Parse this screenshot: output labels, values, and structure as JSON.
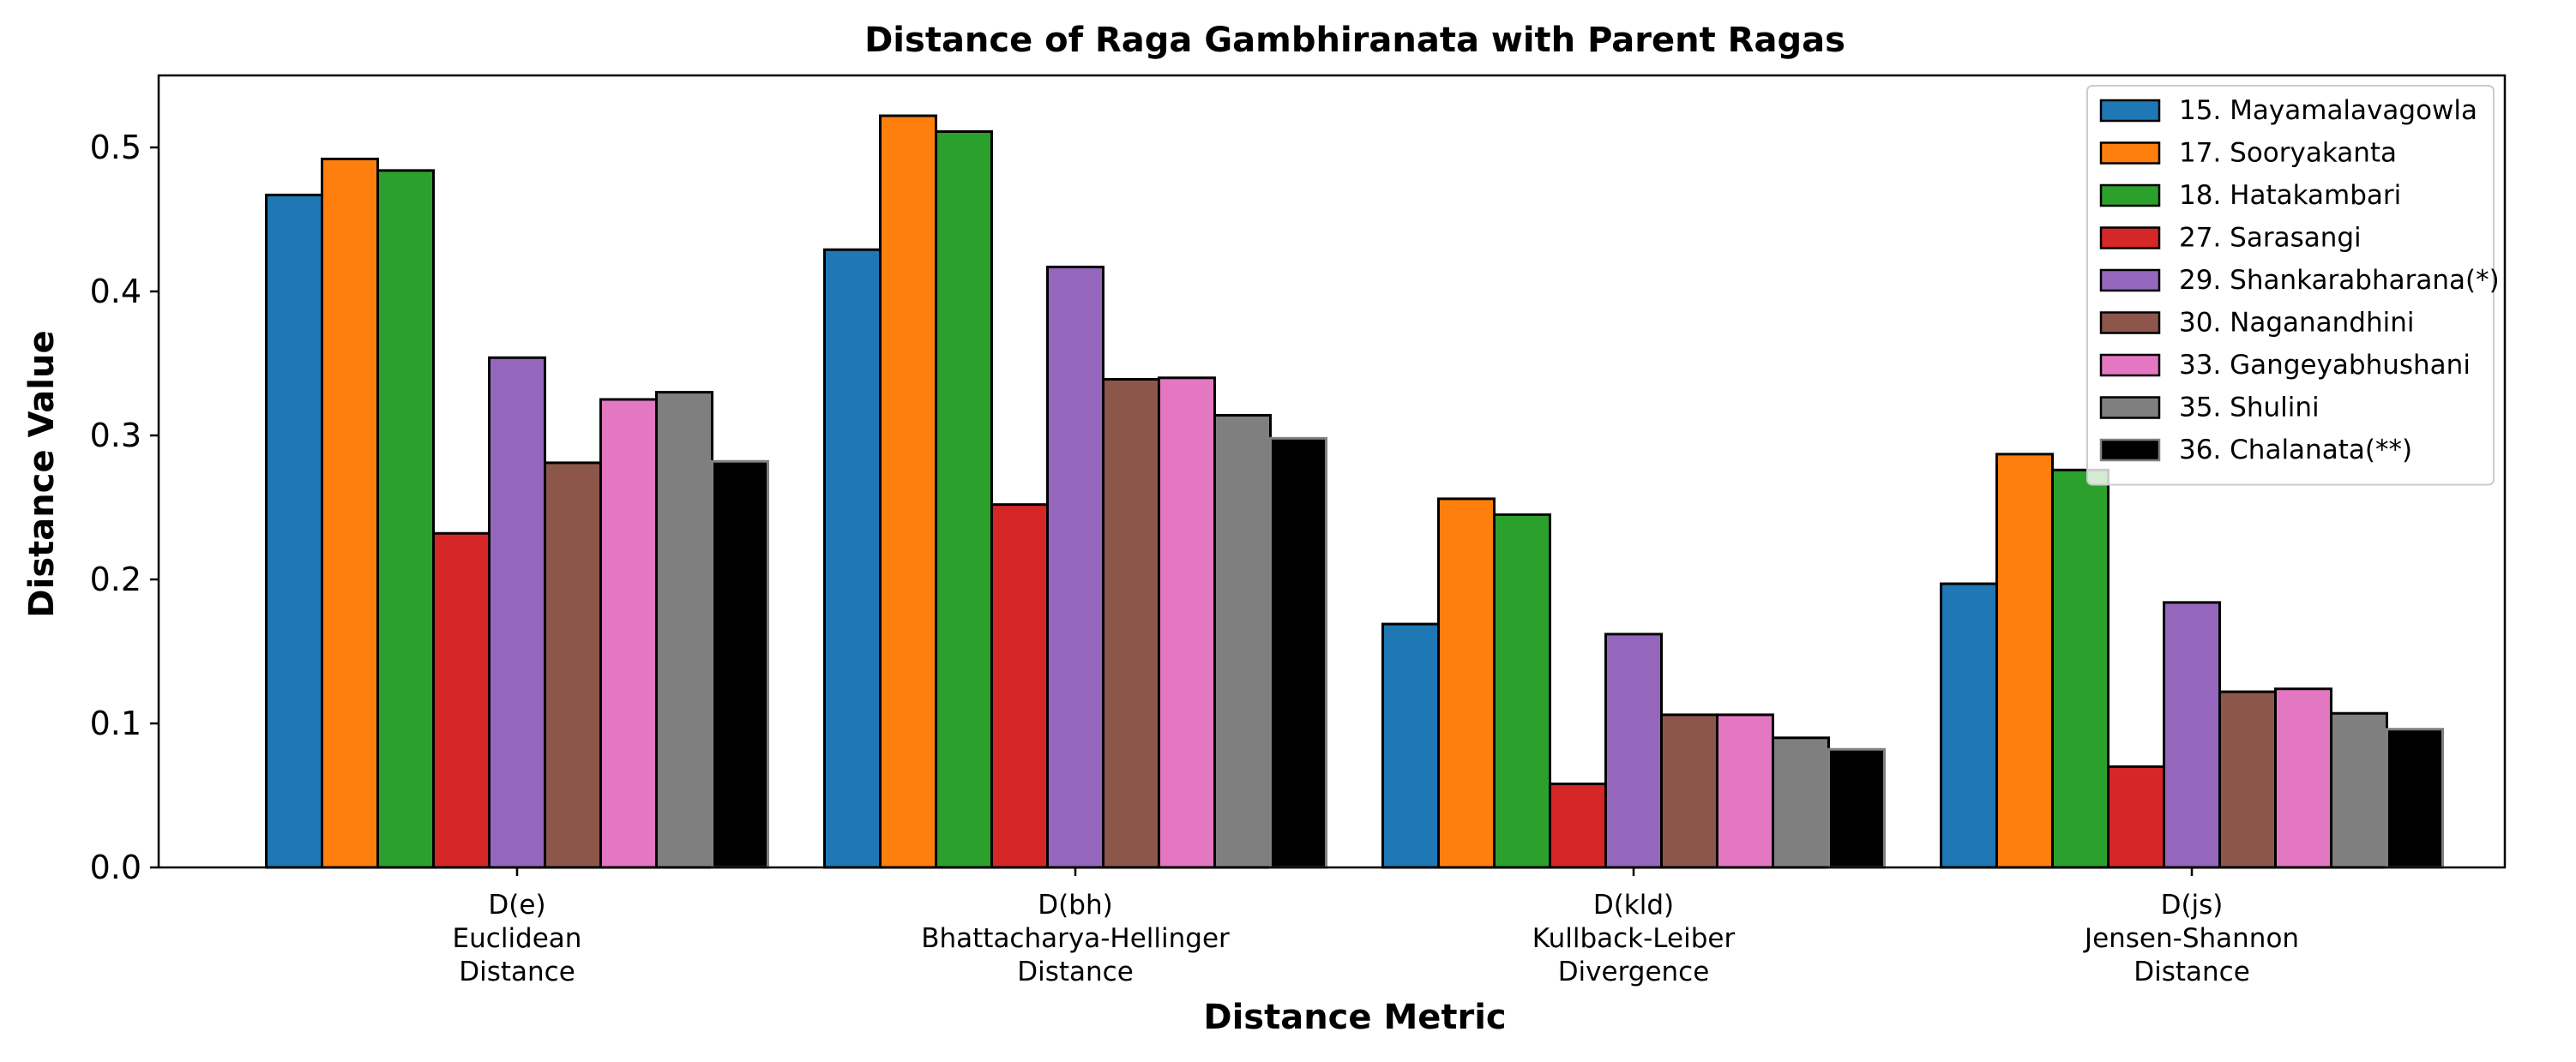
{
  "chart_data": {
    "type": "bar",
    "title": "Distance of Raga Gambhiranata with Parent Ragas",
    "xlabel": "Distance Metric",
    "ylabel": "Distance Value",
    "ylim": [
      0,
      0.55
    ],
    "yticks": [
      "0.0",
      "0.1",
      "0.2",
      "0.3",
      "0.4",
      "0.5"
    ],
    "grid": false,
    "legend_position": "top-right",
    "categories": [
      [
        "D(e)",
        "Euclidean",
        "Distance"
      ],
      [
        "D(bh)",
        "Bhattacharya-Hellinger",
        "Distance"
      ],
      [
        "D(kld)",
        "Kullback-Leiber",
        "Divergence"
      ],
      [
        "D(js)",
        "Jensen-Shannon",
        "Distance"
      ]
    ],
    "series": [
      {
        "name": "15. Mayamalavagowla",
        "color": "#1f77b4",
        "values": [
          0.467,
          0.429,
          0.169,
          0.197
        ]
      },
      {
        "name": "17. Sooryakanta",
        "color": "#ff7f0e",
        "values": [
          0.492,
          0.522,
          0.256,
          0.287
        ]
      },
      {
        "name": "18. Hatakambari",
        "color": "#2ca02c",
        "values": [
          0.484,
          0.511,
          0.245,
          0.276
        ]
      },
      {
        "name": "27. Sarasangi",
        "color": "#d62728",
        "values": [
          0.232,
          0.252,
          0.058,
          0.07
        ]
      },
      {
        "name": "29. Shankarabharana(*)",
        "color": "#9467bd",
        "values": [
          0.354,
          0.417,
          0.162,
          0.184
        ]
      },
      {
        "name": "30. Naganandhini",
        "color": "#8c564b",
        "values": [
          0.281,
          0.339,
          0.106,
          0.122
        ]
      },
      {
        "name": "33. Gangeyabhushani",
        "color": "#e377c2",
        "values": [
          0.325,
          0.34,
          0.106,
          0.124
        ]
      },
      {
        "name": "35. Shulini",
        "color": "#7f7f7f",
        "values": [
          0.33,
          0.314,
          0.09,
          0.107
        ]
      },
      {
        "name": "36. Chalanata(**)",
        "color": "#000000",
        "values": [
          0.282,
          0.298,
          0.082,
          0.096
        ]
      }
    ]
  }
}
